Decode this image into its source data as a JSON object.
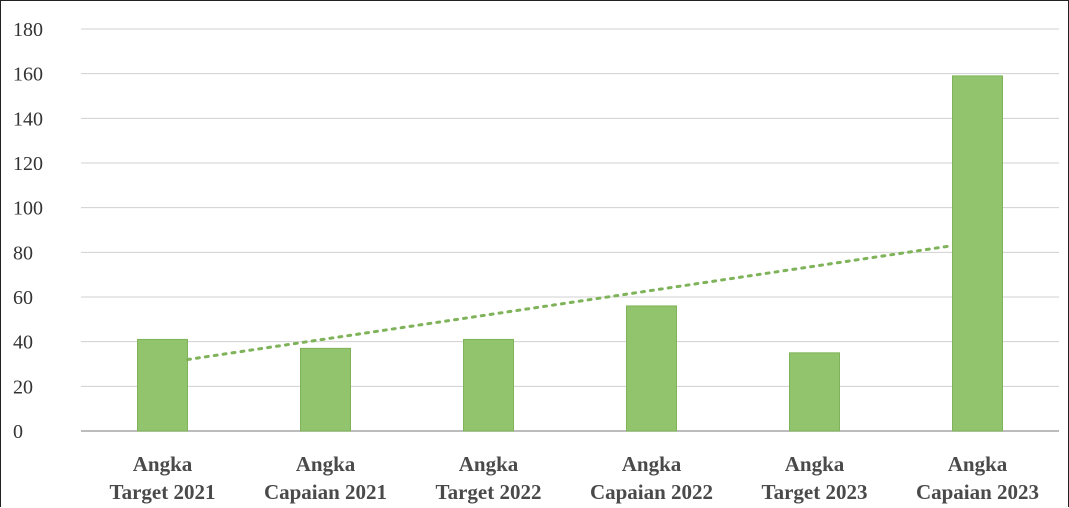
{
  "chart_data": {
    "type": "bar",
    "title": "",
    "xlabel": "",
    "ylabel": "",
    "ylim": [
      0,
      180
    ],
    "yticks": [
      0,
      20,
      40,
      60,
      80,
      100,
      120,
      140,
      160,
      180
    ],
    "grid": true,
    "categories": [
      [
        "Angka",
        "Target 2021"
      ],
      [
        "Angka",
        "Capaian 2021"
      ],
      [
        "Angka",
        "Target 2022"
      ],
      [
        "Angka",
        "Capaian 2022"
      ],
      [
        "Angka",
        "Target 2023"
      ],
      [
        "Angka",
        "Capaian 2023"
      ]
    ],
    "values": [
      41,
      37,
      41,
      56,
      35,
      159
    ],
    "trendline": {
      "type": "linear",
      "style": "dotted",
      "start": 32,
      "end": 83
    },
    "colors": {
      "bar": "#92c46d",
      "bar_edge": "#7fb35a",
      "trend": "#7fb35a",
      "grid": "#d0d0d0",
      "axis": "#a6a6a6"
    }
  }
}
